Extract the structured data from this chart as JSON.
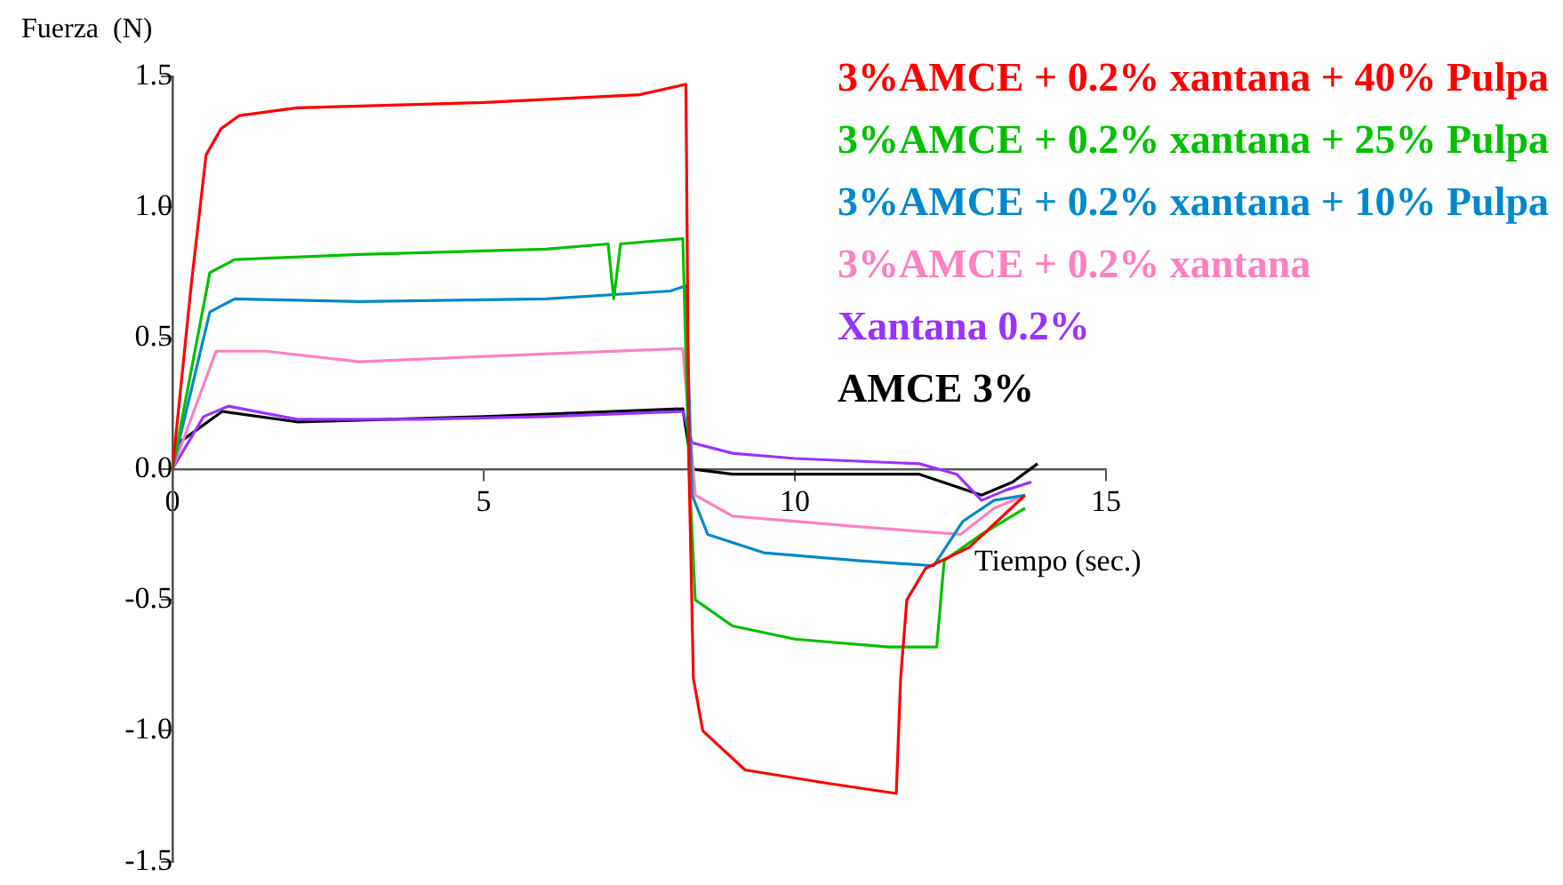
{
  "chart_data": {
    "type": "line",
    "xlabel": "Tiempo (sec.)",
    "ylabel": "Fuerza  (N)",
    "xlim": [
      0,
      15
    ],
    "ylim": [
      -1.5,
      1.5
    ],
    "xticks": [
      0,
      5,
      10,
      15
    ],
    "yticks": [
      {
        "value": -1.5,
        "label": "-1.5"
      },
      {
        "value": -1,
        "label": "-1.0"
      },
      {
        "value": -0.5,
        "label": "-0.5"
      },
      {
        "value": 0,
        "label": "0.0"
      },
      {
        "value": 0.5,
        "label": "0.5"
      },
      {
        "value": 1,
        "label": "1.0"
      },
      {
        "value": 1.5,
        "label": "1.5"
      }
    ],
    "grid": false,
    "legend": "top right",
    "series": [
      {
        "name": "3%AMCE + 0.2% xantana + 40% Pulpa",
        "color": "#ff0000",
        "x": [
          0,
          0.3,
          0.54,
          0.78,
          1.07,
          2,
          5,
          7.5,
          8.25,
          8.3,
          8.37,
          8.52,
          9.2,
          10.5,
          11.63,
          11.7,
          11.8,
          12.1,
          12.8,
          13.25,
          13.7
        ],
        "values": [
          0,
          0.7,
          1.2,
          1.3,
          1.35,
          1.38,
          1.4,
          1.43,
          1.47,
          0,
          -0.8,
          -1.0,
          -1.15,
          -1.2,
          -1.24,
          -0.8,
          -0.5,
          -0.38,
          -0.3,
          -0.2,
          -0.1
        ]
      },
      {
        "name": "3%AMCE + 0.2% xantana + 25% Pulpa",
        "color": "#00c000",
        "x": [
          0,
          0.6,
          1,
          3,
          6,
          7,
          7.09,
          7.2,
          8.2,
          8.3,
          8.4,
          9,
          10,
          11.5,
          12.28,
          12.4,
          13,
          13.7
        ],
        "values": [
          0,
          0.75,
          0.8,
          0.82,
          0.84,
          0.86,
          0.65,
          0.86,
          0.88,
          0,
          -0.5,
          -0.6,
          -0.65,
          -0.68,
          -0.68,
          -0.35,
          -0.25,
          -0.15
        ]
      },
      {
        "name": "3%AMCE + 0.2% xantana + 10% Pulpa",
        "color": "#0088cc",
        "x": [
          0,
          0.6,
          1,
          3,
          6,
          8,
          8.25,
          8.35,
          8.6,
          9.5,
          11,
          12.23,
          12.7,
          13.2,
          13.7
        ],
        "values": [
          0,
          0.6,
          0.65,
          0.64,
          0.65,
          0.68,
          0.7,
          -0.1,
          -0.25,
          -0.32,
          -0.35,
          -0.37,
          -0.2,
          -0.12,
          -0.1
        ]
      },
      {
        "name": "3%AMCE + 0.2% xantana",
        "color": "#ff80c0",
        "x": [
          0,
          0.7,
          1.5,
          3,
          5,
          8.2,
          8.4,
          9,
          10,
          11,
          12.66,
          13.2,
          13.7
        ],
        "values": [
          0,
          0.45,
          0.45,
          0.41,
          0.43,
          0.46,
          -0.1,
          -0.18,
          -0.2,
          -0.22,
          -0.25,
          -0.15,
          -0.1
        ]
      },
      {
        "name": "Xantana 0.2%",
        "color": "#9933ff",
        "x": [
          0,
          0.5,
          0.9,
          2,
          4,
          6,
          8.2,
          8.35,
          9,
          10,
          12,
          12.6,
          13,
          13.4,
          13.8
        ],
        "values": [
          0,
          0.2,
          0.24,
          0.19,
          0.19,
          0.2,
          0.22,
          0.1,
          0.06,
          0.04,
          0.02,
          -0.02,
          -0.12,
          -0.08,
          -0.05
        ]
      },
      {
        "name": "AMCE 3%",
        "color": "#000000",
        "x": [
          0,
          0.1,
          0.8,
          2,
          5,
          8.2,
          8.35,
          9,
          12,
          13,
          13.5,
          13.9
        ],
        "values": [
          0,
          0.1,
          0.22,
          0.18,
          0.2,
          0.23,
          0,
          -0.02,
          -0.02,
          -0.1,
          -0.05,
          0.02
        ]
      }
    ]
  }
}
